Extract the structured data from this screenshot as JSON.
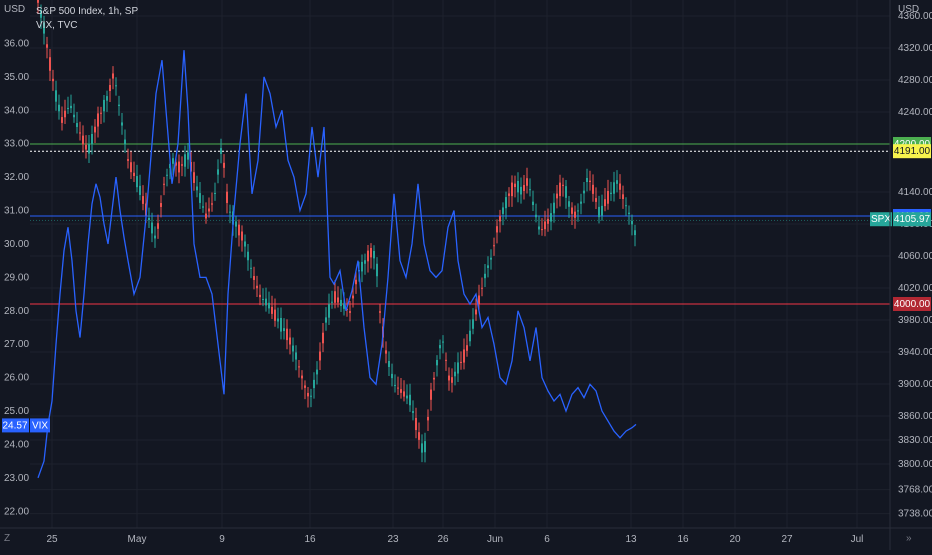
{
  "header": {
    "spx_title": "S&P 500 Index, 1h, SP",
    "vix_title": "VIX, TVC"
  },
  "left_unit": "USD",
  "right_unit": "USD",
  "corner_z": "Z",
  "corner_arrow": "»",
  "colors": {
    "bg": "#131722",
    "grid": "#1e222d",
    "up": "#26a69a",
    "down": "#ef5350",
    "vix": "#2962ff",
    "green_line": "#4caf50",
    "red_line": "#f23645",
    "blue_line": "#2962ff"
  },
  "chart_data": {
    "type": "candlestick+line",
    "left_axis": {
      "min": 21.5,
      "max": 37.3,
      "ticks": [
        22.0,
        23.0,
        24.0,
        25.0,
        26.0,
        27.0,
        28.0,
        29.0,
        30.0,
        31.0,
        32.0,
        33.0,
        34.0,
        35.0,
        36.0
      ]
    },
    "right_axis": {
      "min": 3720,
      "max": 4380,
      "ticks": [
        3738,
        3768,
        3800,
        3830,
        3860,
        3900,
        3940,
        3980,
        4020,
        4060,
        4100,
        4140,
        4240,
        4280,
        4320,
        4360
      ]
    },
    "x_labels": [
      "25",
      "May",
      "9",
      "16",
      "23",
      "26",
      "Jun",
      "6",
      "13",
      "16",
      "20",
      "27",
      "Jul"
    ],
    "horizontal_lines": [
      {
        "label": "4200.00",
        "value": 4200,
        "style": "solid",
        "color": "#4caf50",
        "badge_bg": "#4caf50",
        "badge_fg": "#ffffff"
      },
      {
        "label": "4191.00",
        "value": 4191,
        "style": "dotted",
        "color": "#ffffff",
        "badge_bg": "#f7f34d",
        "badge_fg": "#131722"
      },
      {
        "label": "4110.00",
        "value": 4110,
        "style": "solid",
        "color": "#2962ff",
        "badge_bg": "#2962ff",
        "badge_fg": "#ffffff"
      },
      {
        "label": "4000.00",
        "value": 4000,
        "style": "solid",
        "color": "#f23645",
        "badge_bg": "#b22833",
        "badge_fg": "#ffffff"
      }
    ],
    "spx_last": {
      "tag": "SPX",
      "value": "4105.97",
      "number": 4105.97,
      "bg": "#26a69a"
    },
    "vix_last": {
      "value": "24.57",
      "tag": "VIX",
      "number": 24.57,
      "bg": "#2962ff"
    },
    "spx_path": [
      [
        0,
        4380
      ],
      [
        6,
        4345
      ],
      [
        12,
        4300
      ],
      [
        18,
        4260
      ],
      [
        24,
        4230
      ],
      [
        32,
        4250
      ],
      [
        40,
        4220
      ],
      [
        50,
        4190
      ],
      [
        60,
        4230
      ],
      [
        70,
        4260
      ],
      [
        76,
        4290
      ],
      [
        82,
        4240
      ],
      [
        90,
        4180
      ],
      [
        100,
        4150
      ],
      [
        110,
        4110
      ],
      [
        118,
        4080
      ],
      [
        126,
        4150
      ],
      [
        134,
        4180
      ],
      [
        142,
        4170
      ],
      [
        150,
        4185
      ],
      [
        160,
        4140
      ],
      [
        168,
        4110
      ],
      [
        176,
        4130
      ],
      [
        184,
        4200
      ],
      [
        190,
        4120
      ],
      [
        198,
        4100
      ],
      [
        206,
        4080
      ],
      [
        214,
        4040
      ],
      [
        222,
        4010
      ],
      [
        230,
        4000
      ],
      [
        240,
        3980
      ],
      [
        250,
        3960
      ],
      [
        258,
        3935
      ],
      [
        266,
        3900
      ],
      [
        272,
        3880
      ],
      [
        280,
        3920
      ],
      [
        288,
        3980
      ],
      [
        296,
        4010
      ],
      [
        304,
        4000
      ],
      [
        312,
        3990
      ],
      [
        320,
        4040
      ],
      [
        326,
        4050
      ],
      [
        332,
        4065
      ],
      [
        338,
        4060
      ],
      [
        342,
        3990
      ],
      [
        348,
        3940
      ],
      [
        356,
        3900
      ],
      [
        364,
        3890
      ],
      [
        372,
        3880
      ],
      [
        380,
        3840
      ],
      [
        386,
        3810
      ],
      [
        392,
        3880
      ],
      [
        398,
        3920
      ],
      [
        404,
        3960
      ],
      [
        412,
        3900
      ],
      [
        420,
        3920
      ],
      [
        428,
        3940
      ],
      [
        436,
        3980
      ],
      [
        442,
        4010
      ],
      [
        448,
        4040
      ],
      [
        454,
        4060
      ],
      [
        460,
        4100
      ],
      [
        466,
        4120
      ],
      [
        472,
        4140
      ],
      [
        478,
        4150
      ],
      [
        484,
        4140
      ],
      [
        490,
        4155
      ],
      [
        496,
        4120
      ],
      [
        502,
        4090
      ],
      [
        508,
        4100
      ],
      [
        514,
        4110
      ],
      [
        520,
        4140
      ],
      [
        526,
        4150
      ],
      [
        532,
        4120
      ],
      [
        538,
        4110
      ],
      [
        544,
        4130
      ],
      [
        550,
        4160
      ],
      [
        556,
        4140
      ],
      [
        562,
        4110
      ],
      [
        568,
        4130
      ],
      [
        574,
        4140
      ],
      [
        580,
        4155
      ],
      [
        586,
        4130
      ],
      [
        592,
        4110
      ],
      [
        598,
        4085
      ]
    ],
    "vix_path": [
      [
        0,
        23.0
      ],
      [
        6,
        23.5
      ],
      [
        10,
        24.6
      ],
      [
        14,
        25.3
      ],
      [
        18,
        27.0
      ],
      [
        22,
        28.5
      ],
      [
        26,
        29.8
      ],
      [
        30,
        30.5
      ],
      [
        34,
        29.5
      ],
      [
        38,
        28.0
      ],
      [
        42,
        27.2
      ],
      [
        46,
        28.5
      ],
      [
        50,
        30.0
      ],
      [
        54,
        31.2
      ],
      [
        58,
        31.8
      ],
      [
        62,
        31.4
      ],
      [
        66,
        30.6
      ],
      [
        70,
        30.0
      ],
      [
        74,
        31.0
      ],
      [
        78,
        32.0
      ],
      [
        82,
        31.0
      ],
      [
        86,
        30.2
      ],
      [
        90,
        29.5
      ],
      [
        96,
        28.5
      ],
      [
        102,
        29.0
      ],
      [
        108,
        30.8
      ],
      [
        114,
        33.0
      ],
      [
        118,
        34.5
      ],
      [
        124,
        35.5
      ],
      [
        128,
        34.0
      ],
      [
        134,
        31.8
      ],
      [
        140,
        33.0
      ],
      [
        146,
        35.8
      ],
      [
        150,
        34.0
      ],
      [
        156,
        30.0
      ],
      [
        162,
        29.0
      ],
      [
        168,
        29.0
      ],
      [
        174,
        28.5
      ],
      [
        180,
        27.0
      ],
      [
        186,
        25.5
      ],
      [
        190,
        28.5
      ],
      [
        196,
        31.0
      ],
      [
        202,
        33.0
      ],
      [
        208,
        34.5
      ],
      [
        214,
        31.5
      ],
      [
        220,
        32.5
      ],
      [
        226,
        35.0
      ],
      [
        232,
        34.5
      ],
      [
        238,
        33.5
      ],
      [
        244,
        34.0
      ],
      [
        250,
        32.5
      ],
      [
        256,
        32.0
      ],
      [
        262,
        31.0
      ],
      [
        268,
        31.5
      ],
      [
        274,
        33.5
      ],
      [
        280,
        32.0
      ],
      [
        286,
        33.5
      ],
      [
        292,
        29.0
      ],
      [
        296,
        28.8
      ],
      [
        302,
        29.2
      ],
      [
        308,
        28.0
      ],
      [
        314,
        28.6
      ],
      [
        320,
        29.5
      ],
      [
        326,
        27.5
      ],
      [
        332,
        26.0
      ],
      [
        338,
        25.8
      ],
      [
        344,
        27.0
      ],
      [
        350,
        29.0
      ],
      [
        356,
        31.5
      ],
      [
        362,
        29.5
      ],
      [
        368,
        29.0
      ],
      [
        374,
        30.0
      ],
      [
        380,
        31.8
      ],
      [
        386,
        30.0
      ],
      [
        392,
        29.2
      ],
      [
        398,
        29.0
      ],
      [
        404,
        29.2
      ],
      [
        410,
        30.5
      ],
      [
        416,
        31.0
      ],
      [
        420,
        29.5
      ],
      [
        426,
        28.5
      ],
      [
        432,
        28.2
      ],
      [
        438,
        28.5
      ],
      [
        444,
        27.5
      ],
      [
        450,
        27.8
      ],
      [
        456,
        27.0
      ],
      [
        462,
        26.0
      ],
      [
        468,
        25.8
      ],
      [
        474,
        26.5
      ],
      [
        480,
        28.0
      ],
      [
        486,
        27.5
      ],
      [
        492,
        26.5
      ],
      [
        498,
        27.5
      ],
      [
        504,
        26.0
      ],
      [
        510,
        25.6
      ],
      [
        516,
        25.3
      ],
      [
        522,
        25.5
      ],
      [
        528,
        25.0
      ],
      [
        534,
        25.5
      ],
      [
        540,
        25.7
      ],
      [
        546,
        25.4
      ],
      [
        552,
        25.8
      ],
      [
        558,
        25.6
      ],
      [
        564,
        25.0
      ],
      [
        570,
        24.7
      ],
      [
        576,
        24.4
      ],
      [
        582,
        24.2
      ],
      [
        588,
        24.4
      ],
      [
        594,
        24.5
      ],
      [
        598,
        24.6
      ]
    ]
  }
}
